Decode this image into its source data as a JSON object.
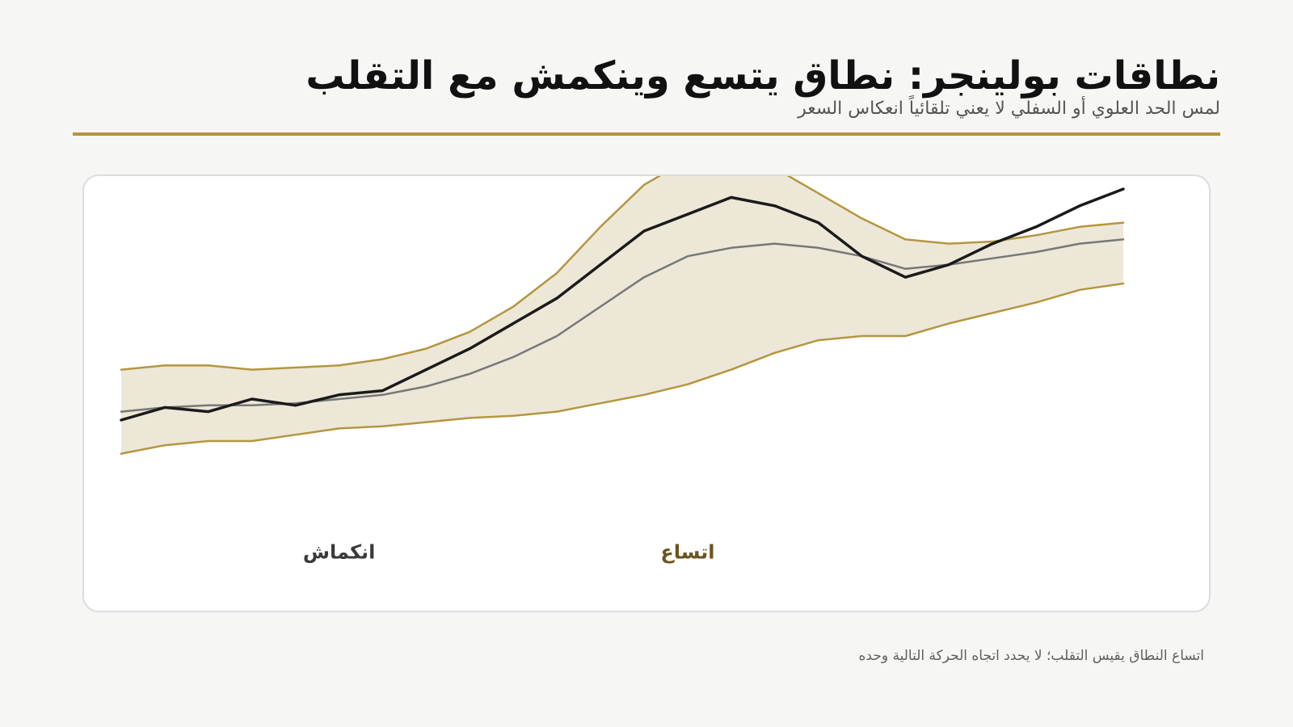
{
  "header": {
    "title": "نطاقات بولينجر: نطاق يتسع وينكمش مع التقلب",
    "subtitle": "لمس الحد العلوي أو السفلي لا يعني تلقائياً انعكاس السعر"
  },
  "footer": {
    "note": "اتساع النطاق يقيس التقلب؛ لا يحدد اتجاه الحركة التالية وحده"
  },
  "colors": {
    "accent": "#b4963f",
    "band_fill": "#ede7d8",
    "price": "#1a1a1a",
    "middle": "#777777",
    "annotation_expand": "#6b5420",
    "annotation_contract": "#3a3a3a"
  },
  "chart_data": {
    "type": "line",
    "x": [
      0,
      1,
      2,
      3,
      4,
      5,
      6,
      7,
      8,
      9,
      10,
      11,
      12,
      13,
      14,
      15,
      16,
      17,
      18,
      19,
      20,
      21,
      22,
      23
    ],
    "ylim": [
      0,
      100
    ],
    "grid": false,
    "legend": "none",
    "series": [
      {
        "role": "upper",
        "values": [
          52,
          53,
          53,
          52,
          52.5,
          53,
          54.5,
          57,
          61,
          67,
          75,
          86,
          96,
          102,
          103,
          100,
          94,
          88,
          83,
          82,
          82.5,
          84,
          86,
          87
        ]
      },
      {
        "role": "middle",
        "values": [
          42,
          43,
          43.5,
          43.5,
          44,
          45,
          46,
          48,
          51,
          55,
          60,
          67,
          74,
          79,
          81,
          82,
          81,
          79,
          76,
          77,
          78.5,
          80,
          82,
          83
        ]
      },
      {
        "role": "lower",
        "values": [
          32,
          34,
          35,
          35,
          36.5,
          38,
          38.5,
          39.5,
          40.5,
          41,
          42,
          44,
          46,
          48.5,
          52,
          56,
          59,
          60,
          60,
          63,
          65.5,
          68,
          71,
          72.5
        ]
      },
      {
        "role": "price",
        "values": [
          40,
          43,
          42,
          45,
          43.5,
          46,
          47,
          52,
          57,
          63,
          69,
          77,
          85,
          89,
          93,
          91,
          87,
          79,
          74,
          77,
          82,
          86,
          91,
          95
        ]
      }
    ],
    "annotations": [
      {
        "label": "انكماش",
        "x": 5,
        "y": 7
      },
      {
        "label": "اتساع",
        "x": 13,
        "y": 7
      }
    ]
  }
}
